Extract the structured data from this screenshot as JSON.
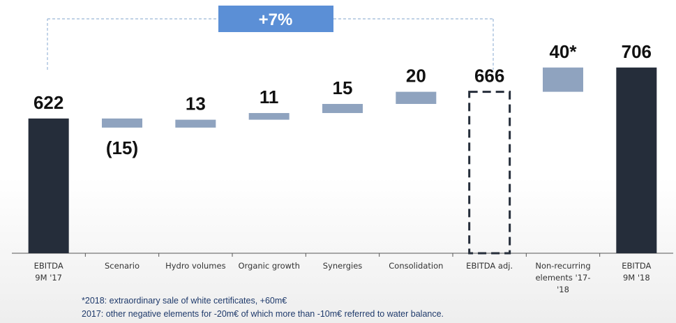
{
  "chart_data": {
    "type": "waterfall",
    "categories": [
      "EBITDA 9M '17",
      "Scenario",
      "Hydro volumes",
      "Organic growth",
      "Synergies",
      "Consolidation",
      "EBITDA adj.",
      "Non-recurring elements '17-'18",
      "EBITDA 9M '18"
    ],
    "values": [
      622,
      -15,
      13,
      11,
      15,
      20,
      666,
      40,
      706
    ],
    "value_labels": [
      "622",
      "(15)",
      "13",
      "11",
      "15",
      "20",
      "666",
      "40*",
      "706"
    ],
    "measure": [
      "absolute",
      "relative",
      "relative",
      "relative",
      "relative",
      "relative",
      "subtotal",
      "relative",
      "absolute"
    ],
    "colors": {
      "absolute": "#252d3a",
      "relative": "#8fa3bf",
      "subtotal": "#252d3a"
    },
    "ylim": [
      400,
      800
    ],
    "annotation": "+7%",
    "footnotes": [
      "*2018: extraordinary sale of white certificates, +60m€",
      "2017: other negative elements for -20m€ of which more than -10m€ referred to water balance."
    ]
  }
}
